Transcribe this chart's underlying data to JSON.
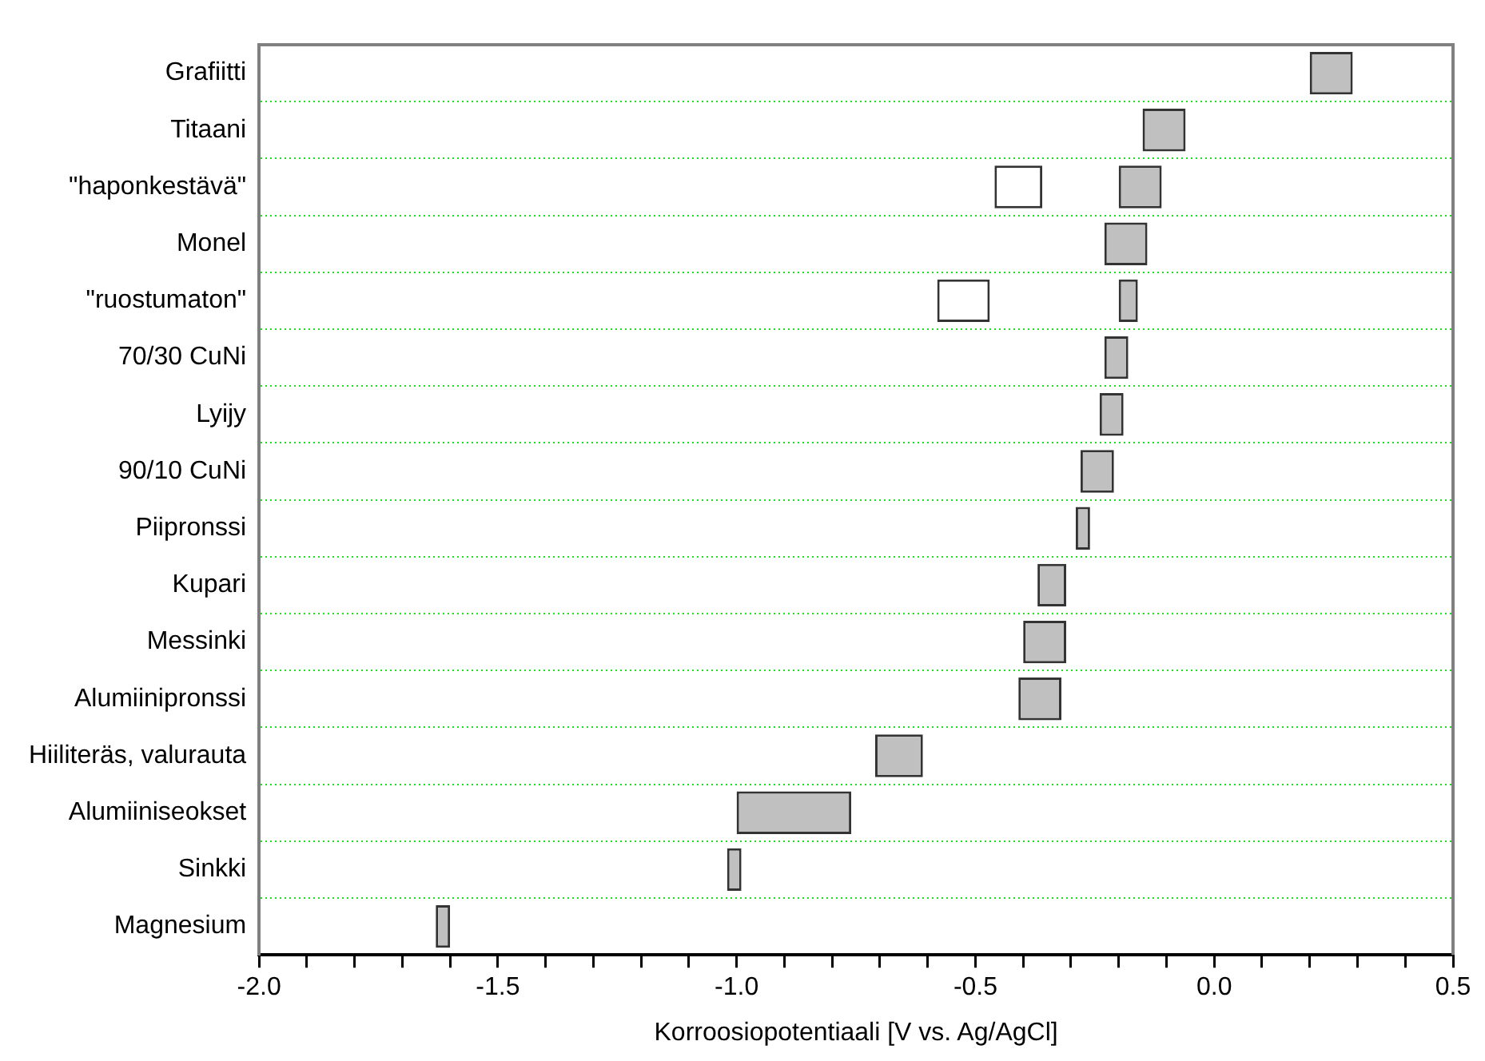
{
  "chart_data": {
    "type": "bar",
    "orientation": "horizontal",
    "xlabel": "Korroosiopotentiaali [V vs. Ag/AgCl]",
    "categories": [
      "Grafiitti",
      "Titaani",
      "\"haponkestävä\"",
      "Monel",
      "\"ruostumaton\"",
      "70/30 CuNi",
      "Lyijy",
      "90/10 CuNi",
      "Piipronssi",
      "Kupari",
      "Messinki",
      "Alumiinipronssi",
      "Hiiliteräs, valurauta",
      "Alumiiniseokset",
      "Sinkki",
      "Magnesium"
    ],
    "series": [
      {
        "color": "#c0c0c0",
        "base": [
          0.2,
          -0.15,
          -0.2,
          -0.23,
          -0.2,
          -0.23,
          -0.24,
          -0.28,
          -0.29,
          -0.37,
          -0.4,
          -0.41,
          -0.71,
          -1.0,
          -1.02,
          -1.63
        ],
        "values": [
          0.09,
          0.09,
          0.09,
          0.09,
          0.04,
          0.05,
          0.05,
          0.07,
          0.03,
          0.06,
          0.09,
          0.09,
          0.1,
          0.24,
          0.03,
          0.03
        ]
      },
      {
        "color": "#ffffff",
        "base": [
          null,
          null,
          -0.46,
          null,
          -0.58,
          null,
          null,
          null,
          null,
          null,
          null,
          null,
          null,
          null,
          null,
          null
        ],
        "values": [
          null,
          null,
          0.1,
          null,
          0.11,
          null,
          null,
          null,
          null,
          null,
          null,
          null,
          null,
          null,
          null,
          null
        ]
      }
    ],
    "xlim": [
      -2.0,
      0.5
    ],
    "xticks": [
      {
        "value": -2.0,
        "label": "-2.0"
      },
      {
        "value": -1.9,
        "label": null
      },
      {
        "value": -1.8,
        "label": null
      },
      {
        "value": -1.7,
        "label": null
      },
      {
        "value": -1.6,
        "label": null
      },
      {
        "value": -1.5,
        "label": "-1.5"
      },
      {
        "value": -1.4,
        "label": null
      },
      {
        "value": -1.3,
        "label": null
      },
      {
        "value": -1.2,
        "label": null
      },
      {
        "value": -1.1,
        "label": null
      },
      {
        "value": -1.0,
        "label": "-1.0"
      },
      {
        "value": -0.9,
        "label": null
      },
      {
        "value": -0.8,
        "label": null
      },
      {
        "value": -0.7,
        "label": null
      },
      {
        "value": -0.6,
        "label": null
      },
      {
        "value": -0.5,
        "label": "-0.5"
      },
      {
        "value": -0.4,
        "label": null
      },
      {
        "value": -0.3,
        "label": null
      },
      {
        "value": -0.2,
        "label": null
      },
      {
        "value": -0.1,
        "label": null
      },
      {
        "value": 0.0,
        "label": "0.0"
      },
      {
        "value": 0.1,
        "label": null
      },
      {
        "value": 0.2,
        "label": null
      },
      {
        "value": 0.3,
        "label": null
      },
      {
        "value": 0.4,
        "label": null
      },
      {
        "value": 0.5,
        "label": "0.5"
      }
    ],
    "grid": "y",
    "legend": false
  }
}
